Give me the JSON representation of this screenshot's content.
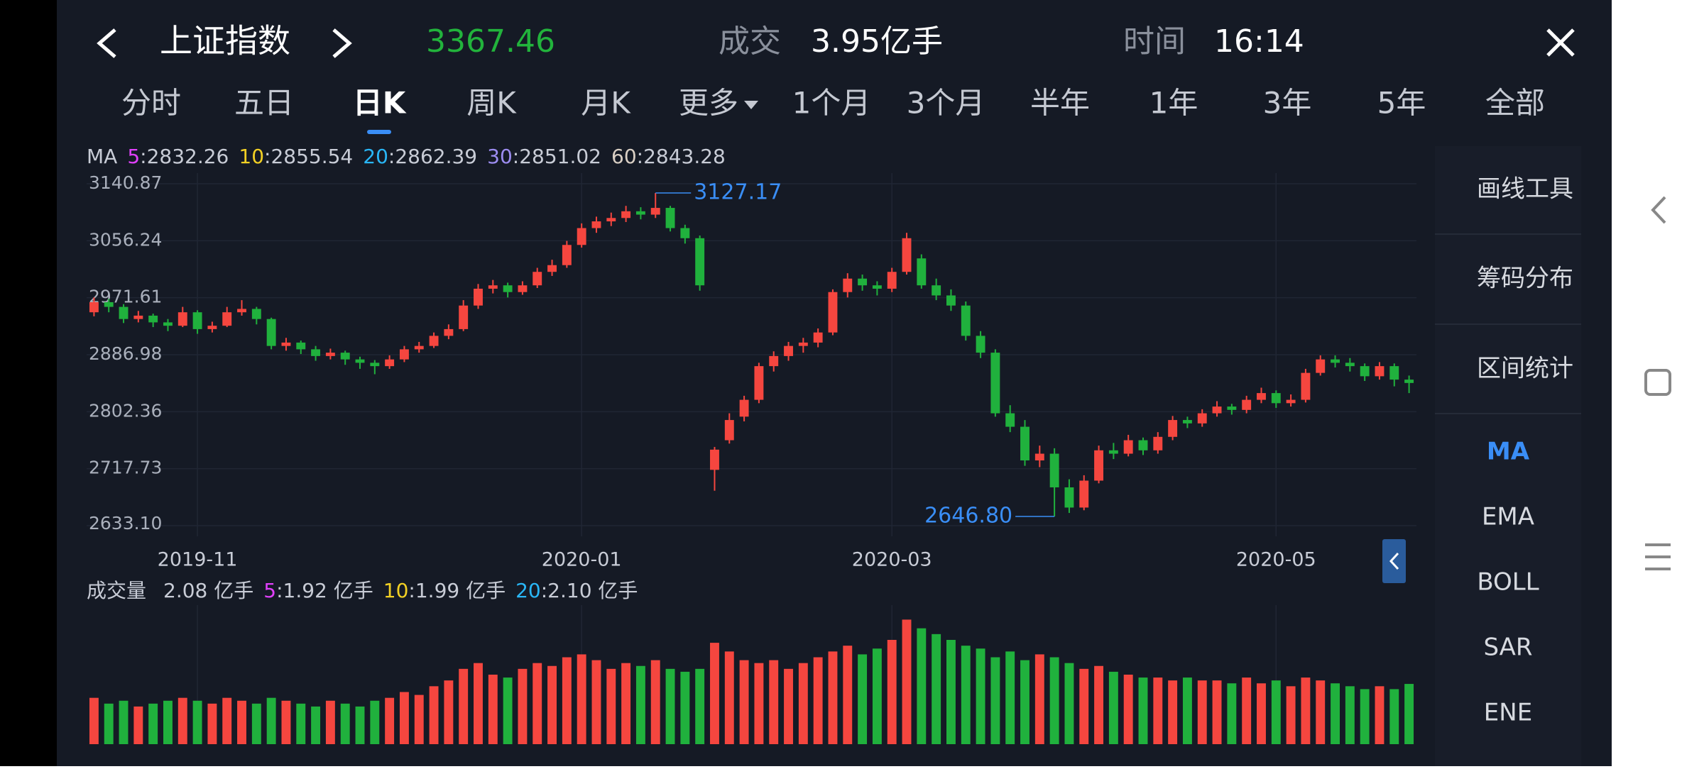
{
  "header": {
    "title": "上证指数",
    "price": "3367.46",
    "volume_label": "成交",
    "volume": "3.95亿手",
    "time_label": "时间",
    "time": "16:14"
  },
  "tabs": [
    "分时",
    "五日",
    "日K",
    "周K",
    "月K",
    "更多",
    "1个月",
    "3个月",
    "半年",
    "1年",
    "3年",
    "5年",
    "全部"
  ],
  "selected_tab": 2,
  "side_tools": [
    "画线工具",
    "筹码分布",
    "区间统计"
  ],
  "indicators": [
    "MA",
    "EMA",
    "BOLL",
    "SAR",
    "ENE"
  ],
  "selected_indicator": 0,
  "chart_data": {
    "type": "candlestick",
    "ma_title": "MA",
    "ma_legend": [
      {
        "name": "5",
        "value": ":2832.26",
        "color": "#e040fb"
      },
      {
        "name": "10",
        "value": ":2855.54",
        "color": "#f2d024"
      },
      {
        "name": "20",
        "value": ":2862.39",
        "color": "#29b6f6"
      },
      {
        "name": "30",
        "value": ":2851.02",
        "color": "#9c8cf0"
      },
      {
        "name": "60",
        "value": ":2843.28",
        "color": "#d9cfc4"
      }
    ],
    "ylim": [
      2633.1,
      3140.87
    ],
    "yticks": [
      3140.87,
      3056.24,
      2971.61,
      2886.98,
      2802.36,
      2717.73,
      {
        "value": 2633.1,
        "label": "2633.10"
      }
    ],
    "xticks": [
      {
        "value": 7,
        "label": "2019-11"
      },
      {
        "value": 33,
        "label": "2020-01"
      },
      {
        "value": 54,
        "label": "2020-03"
      },
      {
        "value": 80,
        "label": "2020-05"
      }
    ],
    "up_color": "#f5463f",
    "down_color": "#20b13d",
    "annotations": [
      {
        "index": 38,
        "value": 3127.17,
        "side": "right"
      },
      {
        "index": 65,
        "value": {
          "value": 2646.8,
          "label": "2646.80"
        },
        "side": "left"
      }
    ],
    "candles": [
      [
        2950,
        2972,
        2944,
        2965
      ],
      [
        2965,
        2970,
        2950,
        2958
      ],
      [
        2958,
        2962,
        2934,
        2940
      ],
      [
        2940,
        2952,
        2935,
        2945
      ],
      [
        2945,
        2948,
        2928,
        2935
      ],
      [
        2935,
        2940,
        2922,
        2930
      ],
      [
        2930,
        2958,
        2928,
        2950
      ],
      [
        2950,
        2953,
        2918,
        2925
      ],
      [
        2925,
        2936,
        2920,
        2930
      ],
      [
        2930,
        2958,
        2928,
        2950
      ],
      [
        2950,
        2968,
        2945,
        2955
      ],
      [
        2955,
        2958,
        2932,
        2940
      ],
      [
        2940,
        2942,
        2895,
        2900
      ],
      [
        2900,
        2912,
        2893,
        2905
      ],
      [
        2905,
        2908,
        2888,
        2895
      ],
      [
        2895,
        2900,
        2878,
        2885
      ],
      [
        2885,
        2896,
        2880,
        2890
      ],
      [
        2890,
        2893,
        2872,
        2880
      ],
      [
        2880,
        2884,
        2866,
        2875
      ],
      [
        2875,
        2879,
        2858,
        2870
      ],
      [
        2870,
        2886,
        2866,
        2880
      ],
      [
        2880,
        2900,
        2876,
        2895
      ],
      [
        2895,
        2906,
        2890,
        2900
      ],
      [
        2900,
        2920,
        2897,
        2915
      ],
      [
        2915,
        2932,
        2910,
        2925
      ],
      [
        2925,
        2968,
        2922,
        2960
      ],
      [
        2960,
        2992,
        2955,
        2985
      ],
      [
        2985,
        2998,
        2978,
        2990
      ],
      [
        2990,
        2994,
        2972,
        2980
      ],
      [
        2980,
        2996,
        2976,
        2990
      ],
      [
        2990,
        3016,
        2986,
        3010
      ],
      [
        3010,
        3028,
        3004,
        3020
      ],
      [
        3020,
        3056,
        3016,
        3050
      ],
      [
        3050,
        3082,
        3046,
        3075
      ],
      [
        3075,
        3092,
        3068,
        3085
      ],
      [
        3085,
        3098,
        3078,
        3090
      ],
      [
        3090,
        3108,
        3084,
        3100
      ],
      [
        3100,
        3106,
        3088,
        3095
      ],
      [
        3095,
        3127.17,
        3090,
        3105
      ],
      [
        3105,
        3108,
        3070,
        3075
      ],
      [
        3075,
        3080,
        3052,
        3060
      ],
      [
        3060,
        3064,
        2982,
        2990
      ],
      [
        2716,
        2750,
        2685,
        2746
      ],
      [
        2760,
        2800,
        2755,
        2790
      ],
      [
        2795,
        2826,
        2788,
        2820
      ],
      [
        2820,
        2875,
        2815,
        2870
      ],
      [
        2870,
        2892,
        2862,
        2885
      ],
      [
        2885,
        2906,
        2878,
        2900
      ],
      [
        2900,
        2912,
        2890,
        2905
      ],
      [
        2905,
        2926,
        2898,
        2920
      ],
      [
        2920,
        2984,
        2916,
        2980
      ],
      [
        2980,
        3008,
        2972,
        3000
      ],
      [
        3000,
        3006,
        2982,
        2990
      ],
      [
        2990,
        2996,
        2975,
        2985
      ],
      [
        2985,
        3016,
        2980,
        3010
      ],
      [
        3010,
        3068,
        3006,
        3060
      ],
      [
        3030,
        3036,
        2985,
        2990
      ],
      [
        2990,
        3000,
        2968,
        2975
      ],
      [
        2975,
        2984,
        2952,
        2960
      ],
      [
        2960,
        2966,
        2908,
        2915
      ],
      [
        2915,
        2922,
        2882,
        2890
      ],
      [
        2890,
        2895,
        2795,
        2800
      ],
      [
        2800,
        2812,
        2772,
        2780
      ],
      [
        2780,
        2790,
        2722,
        2730
      ],
      [
        2730,
        2752,
        2720,
        2740
      ],
      [
        2740,
        2748,
        2646.8,
        2690
      ],
      [
        2690,
        2702,
        2652,
        2660
      ],
      [
        2660,
        2708,
        2656,
        2700
      ],
      [
        2700,
        2752,
        2696,
        2745
      ],
      [
        2745,
        2756,
        2732,
        2740
      ],
      [
        2740,
        2768,
        2736,
        2760
      ],
      [
        2760,
        2764,
        2738,
        2745
      ],
      [
        2745,
        2772,
        2740,
        2765
      ],
      [
        2765,
        2796,
        2760,
        2790
      ],
      [
        2790,
        2795,
        2778,
        2785
      ],
      [
        2785,
        2806,
        2780,
        2800
      ],
      [
        2800,
        2818,
        2795,
        2810
      ],
      [
        2810,
        2814,
        2798,
        2805
      ],
      [
        2805,
        2826,
        2800,
        2820
      ],
      [
        2820,
        2838,
        2815,
        2830
      ],
      [
        2830,
        2834,
        2808,
        2815
      ],
      [
        2815,
        2828,
        2810,
        2820
      ],
      [
        2820,
        2866,
        2816,
        2860
      ],
      [
        2860,
        2886,
        2856,
        2880
      ],
      [
        2880,
        2886,
        2868,
        2875
      ],
      [
        2875,
        2882,
        2862,
        2870
      ],
      [
        2870,
        2874,
        2848,
        2855
      ],
      [
        2855,
        2876,
        2850,
        2870
      ],
      [
        2870,
        2874,
        2840,
        2850
      ],
      [
        2850,
        2856,
        2830,
        2845
      ]
    ],
    "volume_title": "成交量",
    "volume_legend": [
      {
        "name": "",
        "value": "2.08 亿手",
        "color": "#c8ccd6"
      },
      {
        "name": "5",
        "value": ":1.92 亿手",
        "color": "#e040fb"
      },
      {
        "name": "10",
        "value": ":1.99 亿手",
        "color": "#f2d024"
      },
      {
        "name": "20",
        "value": ":2.10 亿手",
        "color": "#29b6f6"
      }
    ],
    "vlim": [
      0,
      4.8
    ],
    "volumes": [
      1.6,
      1.4,
      1.5,
      1.3,
      1.4,
      1.5,
      1.6,
      1.5,
      1.4,
      1.6,
      1.5,
      1.4,
      1.6,
      1.5,
      1.4,
      1.3,
      1.5,
      1.4,
      1.3,
      1.5,
      1.6,
      1.8,
      1.7,
      2.0,
      2.2,
      2.6,
      2.8,
      2.4,
      2.3,
      2.6,
      2.8,
      2.7,
      3.0,
      3.1,
      2.9,
      2.6,
      2.8,
      2.7,
      2.9,
      2.6,
      2.5,
      2.6,
      3.5,
      3.2,
      2.9,
      2.8,
      2.9,
      2.6,
      2.8,
      3.0,
      3.2,
      3.4,
      3.1,
      3.3,
      3.6,
      4.3,
      4.0,
      3.8,
      3.6,
      3.4,
      3.3,
      3.0,
      3.2,
      2.9,
      3.1,
      3.0,
      2.8,
      2.6,
      2.7,
      2.5,
      2.4,
      2.3,
      2.3,
      2.2,
      2.3,
      2.2,
      2.2,
      2.1,
      2.3,
      2.1,
      2.2,
      2.0,
      2.3,
      2.2,
      2.1,
      2.0,
      1.9,
      2.0,
      1.9,
      2.08
    ]
  }
}
